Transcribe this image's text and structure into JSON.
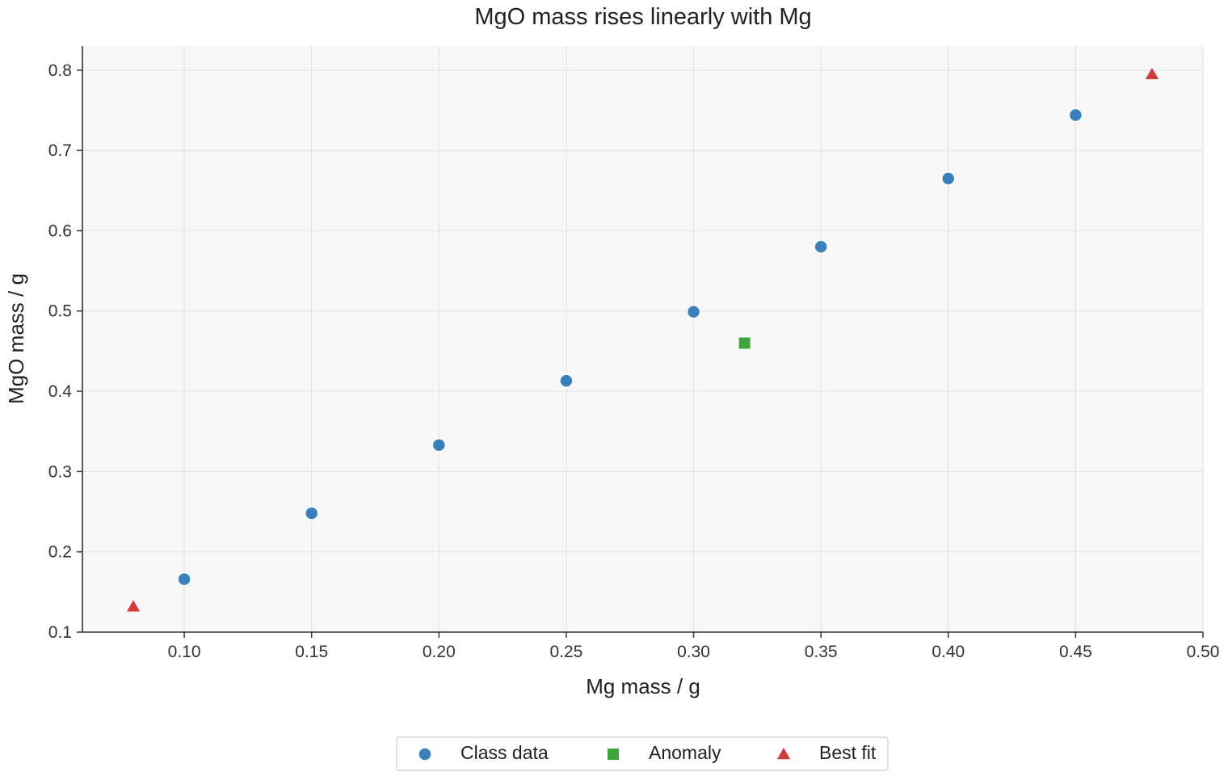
{
  "chart_data": {
    "type": "scatter",
    "title": "MgO mass rises linearly with Mg",
    "xlabel": "Mg mass / g",
    "ylabel": "MgO mass / g",
    "xlim": [
      0.06,
      0.5
    ],
    "ylim": [
      0.1,
      0.83
    ],
    "xticks": [
      "0.10",
      "0.15",
      "0.20",
      "0.25",
      "0.30",
      "0.35",
      "0.40",
      "0.45",
      "0.50"
    ],
    "yticks": [
      "0.1",
      "0.2",
      "0.3",
      "0.4",
      "0.5",
      "0.6",
      "0.7",
      "0.8"
    ],
    "grid": true,
    "legend_position": "bottom-center, below plot",
    "series": [
      {
        "name": "Class data",
        "marker": "circle",
        "color": "#3a80ba",
        "x": [
          0.1,
          0.15,
          0.2,
          0.25,
          0.3,
          0.35,
          0.4,
          0.45
        ],
        "y": [
          0.166,
          0.248,
          0.333,
          0.413,
          0.499,
          0.58,
          0.665,
          0.744
        ]
      },
      {
        "name": "Anomaly",
        "marker": "square",
        "color": "#3ca63c",
        "x": [
          0.32
        ],
        "y": [
          0.46
        ]
      },
      {
        "name": "Best fit",
        "marker": "triangle",
        "color": "#d23a3a",
        "x": [
          0.08,
          0.48
        ],
        "y": [
          0.132,
          0.795
        ]
      }
    ]
  },
  "style": {
    "plot_background": "#f8f8f8",
    "grid_color": "#e3e3e3",
    "axis_color": "#333333"
  }
}
